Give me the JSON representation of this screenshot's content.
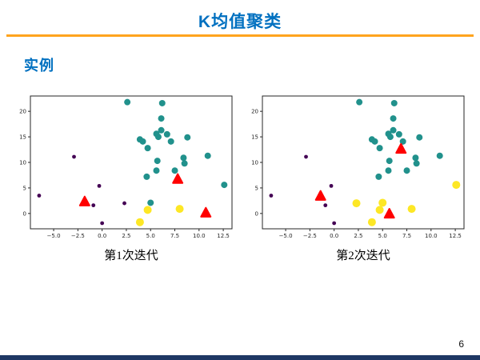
{
  "slide": {
    "title": "K均值聚类",
    "section_label": "实例",
    "page_number": "6",
    "title_color": "#0070C0",
    "accent_line_color": "#FFA41E",
    "footer_bar_color": "#1F3864"
  },
  "chart_data": [
    {
      "type": "scatter",
      "caption": "第1次迭代",
      "xlim": [
        -7.4,
        13.4
      ],
      "ylim": [
        -3.0,
        23.0
      ],
      "xticks": [
        -5.0,
        -2.5,
        0.0,
        2.5,
        5.0,
        7.5,
        10.0,
        12.5
      ],
      "xtick_labels": [
        "−5.0",
        "−2.5",
        "0.0",
        "2.5",
        "5.0",
        "7.5",
        "10.0",
        "12.5"
      ],
      "yticks": [
        0,
        5,
        10,
        15,
        20
      ],
      "ytick_labels": [
        "0",
        "5",
        "10",
        "15",
        "20"
      ],
      "grid": false,
      "legend": false,
      "series": [
        {
          "name": "cluster-teal",
          "color": "#21918c",
          "marker": "circle",
          "size": 4,
          "points": [
            [
              2.6,
              21.8
            ],
            [
              6.2,
              21.6
            ],
            [
              6.1,
              18.6
            ],
            [
              6.1,
              16.3
            ],
            [
              5.6,
              15.6
            ],
            [
              5.8,
              15.0
            ],
            [
              6.7,
              15.5
            ],
            [
              7.1,
              14.1
            ],
            [
              8.8,
              14.9
            ],
            [
              3.9,
              14.5
            ],
            [
              4.2,
              14.1
            ],
            [
              4.7,
              12.8
            ],
            [
              5.7,
              10.3
            ],
            [
              10.9,
              11.3
            ],
            [
              8.4,
              10.9
            ],
            [
              8.5,
              9.8
            ],
            [
              5.6,
              8.4
            ],
            [
              7.5,
              8.4
            ],
            [
              4.6,
              7.2
            ],
            [
              12.6,
              5.6
            ],
            [
              5.0,
              2.1
            ]
          ]
        },
        {
          "name": "cluster-purple",
          "color": "#440154",
          "marker": "circle",
          "size": 2.4,
          "points": [
            [
              -6.5,
              3.5
            ],
            [
              -2.9,
              11.1
            ],
            [
              -0.3,
              5.4
            ],
            [
              -0.9,
              1.6
            ],
            [
              2.3,
              2.0
            ],
            [
              0.0,
              -1.9
            ]
          ]
        },
        {
          "name": "cluster-yellow",
          "color": "#fde725",
          "marker": "circle",
          "size": 5,
          "points": [
            [
              4.7,
              0.7
            ],
            [
              8.0,
              0.9
            ],
            [
              3.9,
              -1.7
            ]
          ]
        },
        {
          "name": "centroids",
          "color": "#ff0000",
          "marker": "triangle",
          "size": 6.5,
          "points": [
            [
              -1.8,
              2.3
            ],
            [
              7.8,
              6.7
            ],
            [
              10.7,
              0.1
            ]
          ]
        }
      ]
    },
    {
      "type": "scatter",
      "caption": "第2次迭代",
      "xlim": [
        -7.4,
        13.4
      ],
      "ylim": [
        -3.0,
        23.0
      ],
      "xticks": [
        -5.0,
        -2.5,
        0.0,
        2.5,
        5.0,
        7.5,
        10.0,
        12.5
      ],
      "xtick_labels": [
        "−5.0",
        "−2.5",
        "0.0",
        "2.5",
        "5.0",
        "7.5",
        "10.0",
        "12.5"
      ],
      "yticks": [
        0,
        5,
        10,
        15,
        20
      ],
      "ytick_labels": [
        "0",
        "5",
        "10",
        "15",
        "20"
      ],
      "grid": false,
      "legend": false,
      "series": [
        {
          "name": "cluster-teal",
          "color": "#21918c",
          "marker": "circle",
          "size": 4,
          "points": [
            [
              2.6,
              21.8
            ],
            [
              6.2,
              21.6
            ],
            [
              6.1,
              18.6
            ],
            [
              6.1,
              16.3
            ],
            [
              5.6,
              15.6
            ],
            [
              5.8,
              15.0
            ],
            [
              6.7,
              15.5
            ],
            [
              7.1,
              14.1
            ],
            [
              8.8,
              14.9
            ],
            [
              3.9,
              14.5
            ],
            [
              4.2,
              14.1
            ],
            [
              4.7,
              12.8
            ],
            [
              5.7,
              10.3
            ],
            [
              10.9,
              11.3
            ],
            [
              8.4,
              10.9
            ],
            [
              8.5,
              9.8
            ],
            [
              5.6,
              8.4
            ],
            [
              7.5,
              8.4
            ],
            [
              4.6,
              7.2
            ]
          ]
        },
        {
          "name": "cluster-purple",
          "color": "#440154",
          "marker": "circle",
          "size": 2.4,
          "points": [
            [
              -6.5,
              3.5
            ],
            [
              -2.9,
              11.1
            ],
            [
              -0.3,
              5.4
            ],
            [
              -0.9,
              1.6
            ],
            [
              0.0,
              -1.9
            ]
          ]
        },
        {
          "name": "cluster-yellow",
          "color": "#fde725",
          "marker": "circle",
          "size": 5,
          "points": [
            [
              4.7,
              0.7
            ],
            [
              8.0,
              0.9
            ],
            [
              3.9,
              -1.7
            ],
            [
              12.6,
              5.6
            ],
            [
              5.0,
              2.1
            ],
            [
              2.3,
              2.0
            ]
          ]
        },
        {
          "name": "centroids",
          "color": "#ff0000",
          "marker": "triangle",
          "size": 6.5,
          "points": [
            [
              -1.4,
              3.4
            ],
            [
              6.9,
              12.6
            ],
            [
              5.7,
              -0.1
            ]
          ]
        }
      ]
    }
  ]
}
